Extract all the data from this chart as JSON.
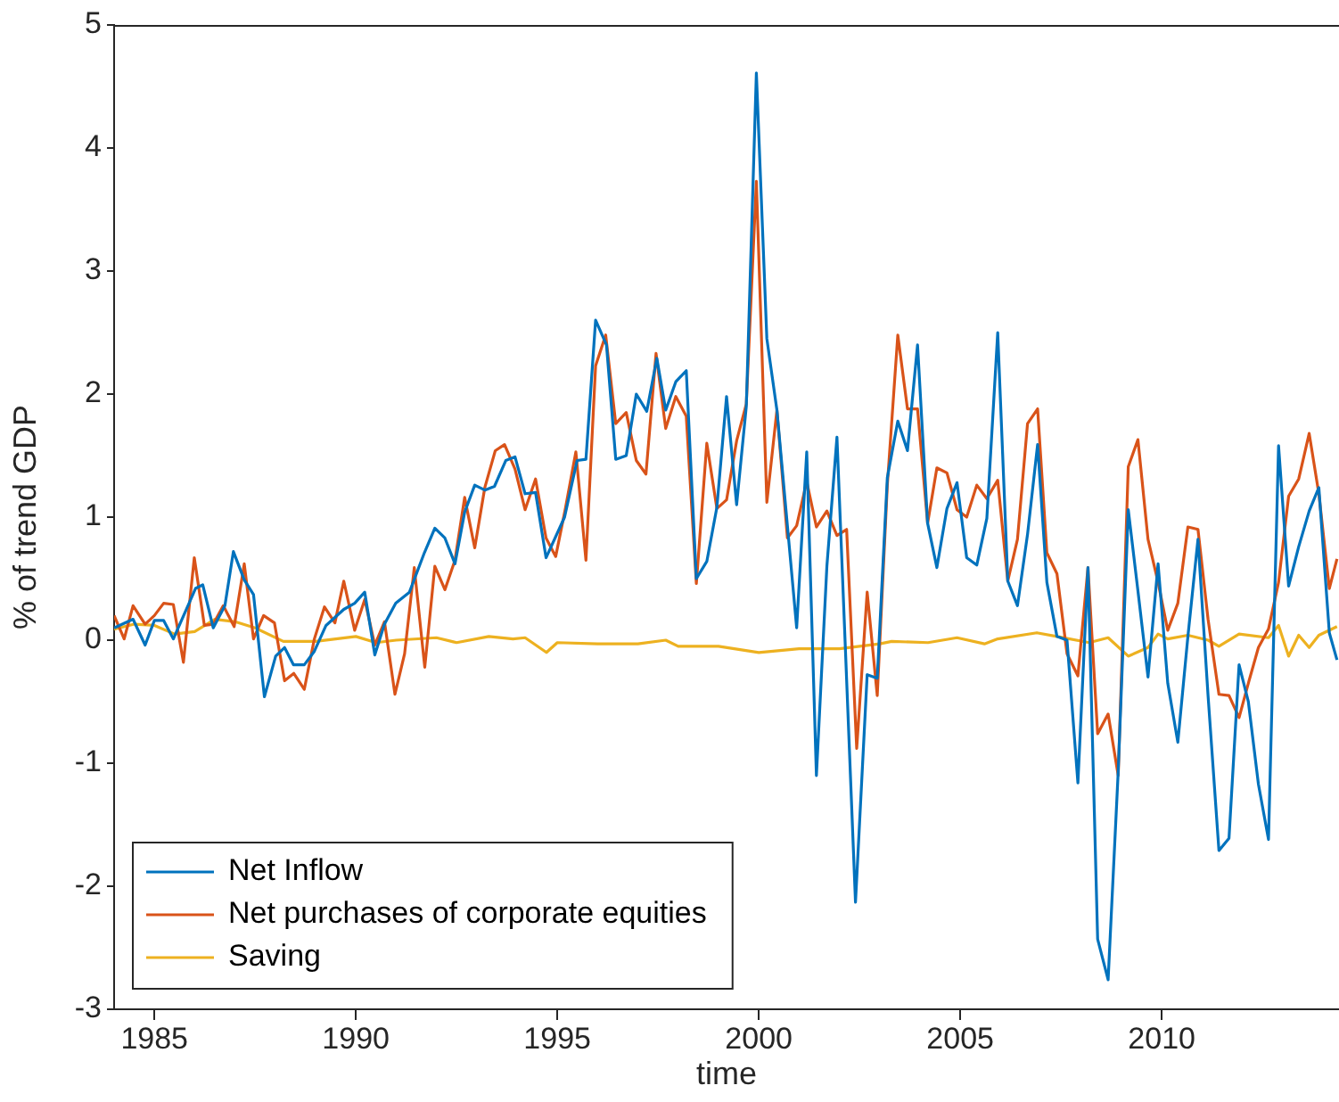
{
  "chart_data": {
    "type": "line",
    "xlabel": "time",
    "ylabel": "% of trend GDP",
    "xlim": [
      1984,
      2014.4
    ],
    "xticks": [
      1985,
      1990,
      1995,
      2000,
      2005,
      2010
    ],
    "ylim": [
      -3,
      5
    ],
    "yticks": [
      -3,
      -2,
      -1,
      0,
      1,
      2,
      3,
      4,
      5
    ],
    "grid": false,
    "legend": "bottom left",
    "marker": "none",
    "line_style": "solid",
    "series": [
      {
        "name": "Net Inflow",
        "color": "#0072bd",
        "x": [
          1984.0,
          1984.47,
          1984.77,
          1985.0,
          1985.23,
          1985.47,
          1986.02,
          1986.2,
          1986.46,
          1986.75,
          1986.96,
          1987.23,
          1987.46,
          1987.73,
          1988.01,
          1988.23,
          1988.45,
          1988.72,
          1988.97,
          1989.26,
          1989.7,
          1989.97,
          1990.22,
          1990.47,
          1990.71,
          1990.99,
          1991.33,
          1991.7,
          1991.96,
          1992.21,
          1992.46,
          1992.7,
          1992.95,
          1993.2,
          1993.44,
          1993.72,
          1993.95,
          1994.2,
          1994.46,
          1994.72,
          1995.18,
          1995.49,
          1995.71,
          1995.95,
          1996.22,
          1996.45,
          1996.71,
          1996.96,
          1997.22,
          1997.47,
          1997.69,
          1997.94,
          1998.2,
          1998.45,
          1998.71,
          1998.96,
          1999.2,
          1999.45,
          1999.69,
          1999.94,
          2000.2,
          2000.45,
          2000.71,
          2000.94,
          2001.19,
          2001.43,
          2001.69,
          2001.94,
          2002.4,
          2002.69,
          2002.94,
          2003.19,
          2003.45,
          2003.69,
          2003.94,
          2004.19,
          2004.42,
          2004.67,
          2004.92,
          2005.16,
          2005.41,
          2005.66,
          2005.93,
          2006.18,
          2006.42,
          2006.67,
          2006.92,
          2007.15,
          2007.4,
          2007.65,
          2007.92,
          2008.17,
          2008.41,
          2008.67,
          2008.92,
          2009.17,
          2009.41,
          2009.66,
          2009.91,
          2010.15,
          2010.4,
          2010.65,
          2010.9,
          2011.15,
          2011.42,
          2011.67,
          2011.92,
          2012.15,
          2012.4,
          2012.65,
          2012.9,
          2013.15,
          2013.4,
          2013.66,
          2013.9,
          2014.16,
          2014.35
        ],
        "values": [
          0.1,
          0.17,
          -0.04,
          0.16,
          0.16,
          0.01,
          0.42,
          0.45,
          0.1,
          0.28,
          0.72,
          0.49,
          0.37,
          -0.46,
          -0.13,
          -0.06,
          -0.2,
          -0.2,
          -0.09,
          0.12,
          0.25,
          0.3,
          0.39,
          -0.12,
          0.13,
          0.3,
          0.39,
          0.71,
          0.91,
          0.83,
          0.62,
          1.04,
          1.26,
          1.22,
          1.25,
          1.46,
          1.49,
          1.19,
          1.2,
          0.67,
          1.0,
          1.46,
          1.47,
          2.6,
          2.4,
          1.47,
          1.5,
          2.0,
          1.86,
          2.29,
          1.87,
          2.1,
          2.19,
          0.5,
          0.64,
          1.08,
          1.98,
          1.1,
          1.9,
          4.61,
          2.45,
          1.87,
          0.93,
          0.1,
          1.53,
          -1.1,
          0.6,
          1.65,
          -2.13,
          -0.28,
          -0.31,
          1.32,
          1.78,
          1.54,
          2.4,
          0.95,
          0.59,
          1.07,
          1.28,
          0.67,
          0.61,
          0.99,
          2.5,
          0.48,
          0.28,
          0.86,
          1.59,
          0.47,
          0.03,
          0.0,
          -1.16,
          0.59,
          -2.43,
          -2.76,
          -1.07,
          1.06,
          0.4,
          -0.3,
          0.62,
          -0.35,
          -0.83,
          0.03,
          0.82,
          -0.45,
          -1.71,
          -1.61,
          -0.2,
          -0.5,
          -1.17,
          -1.62,
          1.58,
          0.44,
          0.76,
          1.05,
          1.24,
          0.06,
          -0.16
        ]
      },
      {
        "name": "Net purchases of corporate equities",
        "color": "#d95319",
        "x": [
          1984.0,
          1984.25,
          1984.47,
          1984.77,
          1985.0,
          1985.23,
          1985.47,
          1985.72,
          1985.99,
          1986.24,
          1986.46,
          1986.71,
          1986.98,
          1987.23,
          1987.46,
          1987.71,
          1987.98,
          1988.23,
          1988.46,
          1988.72,
          1988.97,
          1989.22,
          1989.48,
          1989.7,
          1989.97,
          1990.22,
          1990.47,
          1990.71,
          1990.97,
          1991.21,
          1991.45,
          1991.71,
          1991.96,
          1992.21,
          1992.46,
          1992.7,
          1992.95,
          1993.2,
          1993.46,
          1993.69,
          1993.95,
          1994.2,
          1994.46,
          1994.72,
          1994.96,
          1995.2,
          1995.46,
          1995.71,
          1995.95,
          1996.2,
          1996.45,
          1996.71,
          1996.96,
          1997.2,
          1997.45,
          1997.69,
          1997.94,
          1998.2,
          1998.45,
          1998.71,
          1998.96,
          1999.2,
          1999.45,
          1999.69,
          1999.94,
          2000.2,
          2000.45,
          2000.71,
          2000.94,
          2001.19,
          2001.43,
          2001.69,
          2001.94,
          2002.18,
          2002.43,
          2002.69,
          2002.94,
          2003.19,
          2003.45,
          2003.69,
          2003.94,
          2004.19,
          2004.42,
          2004.67,
          2004.92,
          2005.16,
          2005.41,
          2005.66,
          2005.93,
          2006.18,
          2006.42,
          2006.67,
          2006.92,
          2007.15,
          2007.4,
          2007.65,
          2007.92,
          2008.17,
          2008.41,
          2008.67,
          2008.92,
          2009.17,
          2009.41,
          2009.66,
          2009.91,
          2010.15,
          2010.4,
          2010.65,
          2010.9,
          2011.15,
          2011.42,
          2011.67,
          2011.92,
          2012.15,
          2012.4,
          2012.65,
          2012.9,
          2013.15,
          2013.4,
          2013.66,
          2013.9,
          2014.16,
          2014.35
        ],
        "values": [
          0.2,
          0.01,
          0.28,
          0.13,
          0.2,
          0.3,
          0.29,
          -0.18,
          0.67,
          0.12,
          0.13,
          0.28,
          0.11,
          0.62,
          0.01,
          0.2,
          0.14,
          -0.33,
          -0.27,
          -0.4,
          0.01,
          0.27,
          0.14,
          0.48,
          0.08,
          0.33,
          -0.04,
          0.15,
          -0.44,
          -0.11,
          0.59,
          -0.22,
          0.6,
          0.41,
          0.65,
          1.16,
          0.75,
          1.24,
          1.54,
          1.59,
          1.39,
          1.06,
          1.31,
          0.83,
          0.68,
          1.07,
          1.53,
          0.65,
          2.23,
          2.48,
          1.76,
          1.85,
          1.46,
          1.35,
          2.33,
          1.72,
          1.98,
          1.82,
          0.46,
          1.6,
          1.07,
          1.14,
          1.62,
          1.92,
          3.73,
          1.12,
          1.87,
          0.83,
          0.93,
          1.29,
          0.92,
          1.05,
          0.85,
          0.9,
          -0.88,
          0.39,
          -0.45,
          1.26,
          2.48,
          1.88,
          1.88,
          0.95,
          1.4,
          1.36,
          1.06,
          1.0,
          1.26,
          1.15,
          1.3,
          0.48,
          0.82,
          1.76,
          1.88,
          0.71,
          0.54,
          -0.11,
          -0.29,
          0.59,
          -0.76,
          -0.6,
          -1.1,
          1.41,
          1.63,
          0.82,
          0.47,
          0.08,
          0.3,
          0.92,
          0.9,
          0.17,
          -0.44,
          -0.45,
          -0.63,
          -0.35,
          -0.06,
          0.09,
          0.47,
          1.17,
          1.31,
          1.68,
          1.19,
          0.42,
          0.66
        ]
      },
      {
        "name": "Saving",
        "color": "#edb120",
        "x": [
          1984.0,
          1984.5,
          1985.0,
          1985.5,
          1986.0,
          1986.5,
          1987.0,
          1987.5,
          1988.2,
          1989.0,
          1990.0,
          1990.5,
          1991.0,
          1992.0,
          1992.5,
          1993.3,
          1993.9,
          1994.2,
          1994.73,
          1995.0,
          1996.0,
          1997.0,
          1997.69,
          1998.0,
          1999.0,
          2000.0,
          2001.0,
          2002.0,
          2003.0,
          2003.3,
          2004.2,
          2004.92,
          2005.6,
          2005.93,
          2006.9,
          2007.4,
          2008.2,
          2008.67,
          2009.17,
          2009.66,
          2009.91,
          2010.15,
          2010.65,
          2011.15,
          2011.42,
          2011.92,
          2012.65,
          2012.9,
          2013.15,
          2013.4,
          2013.66,
          2013.9,
          2014.35
        ],
        "values": [
          0.09,
          0.13,
          0.12,
          0.05,
          0.07,
          0.17,
          0.15,
          0.1,
          -0.01,
          -0.01,
          0.03,
          -0.02,
          0.0,
          0.02,
          -0.02,
          0.03,
          0.01,
          0.02,
          -0.1,
          -0.02,
          -0.03,
          -0.03,
          0.0,
          -0.05,
          -0.05,
          -0.1,
          -0.07,
          -0.07,
          -0.03,
          -0.01,
          -0.02,
          0.02,
          -0.03,
          0.01,
          0.06,
          0.03,
          -0.02,
          0.02,
          -0.13,
          -0.06,
          0.05,
          0.01,
          0.04,
          0.0,
          -0.05,
          0.05,
          0.02,
          0.12,
          -0.13,
          0.04,
          -0.06,
          0.04,
          0.11
        ]
      }
    ]
  }
}
